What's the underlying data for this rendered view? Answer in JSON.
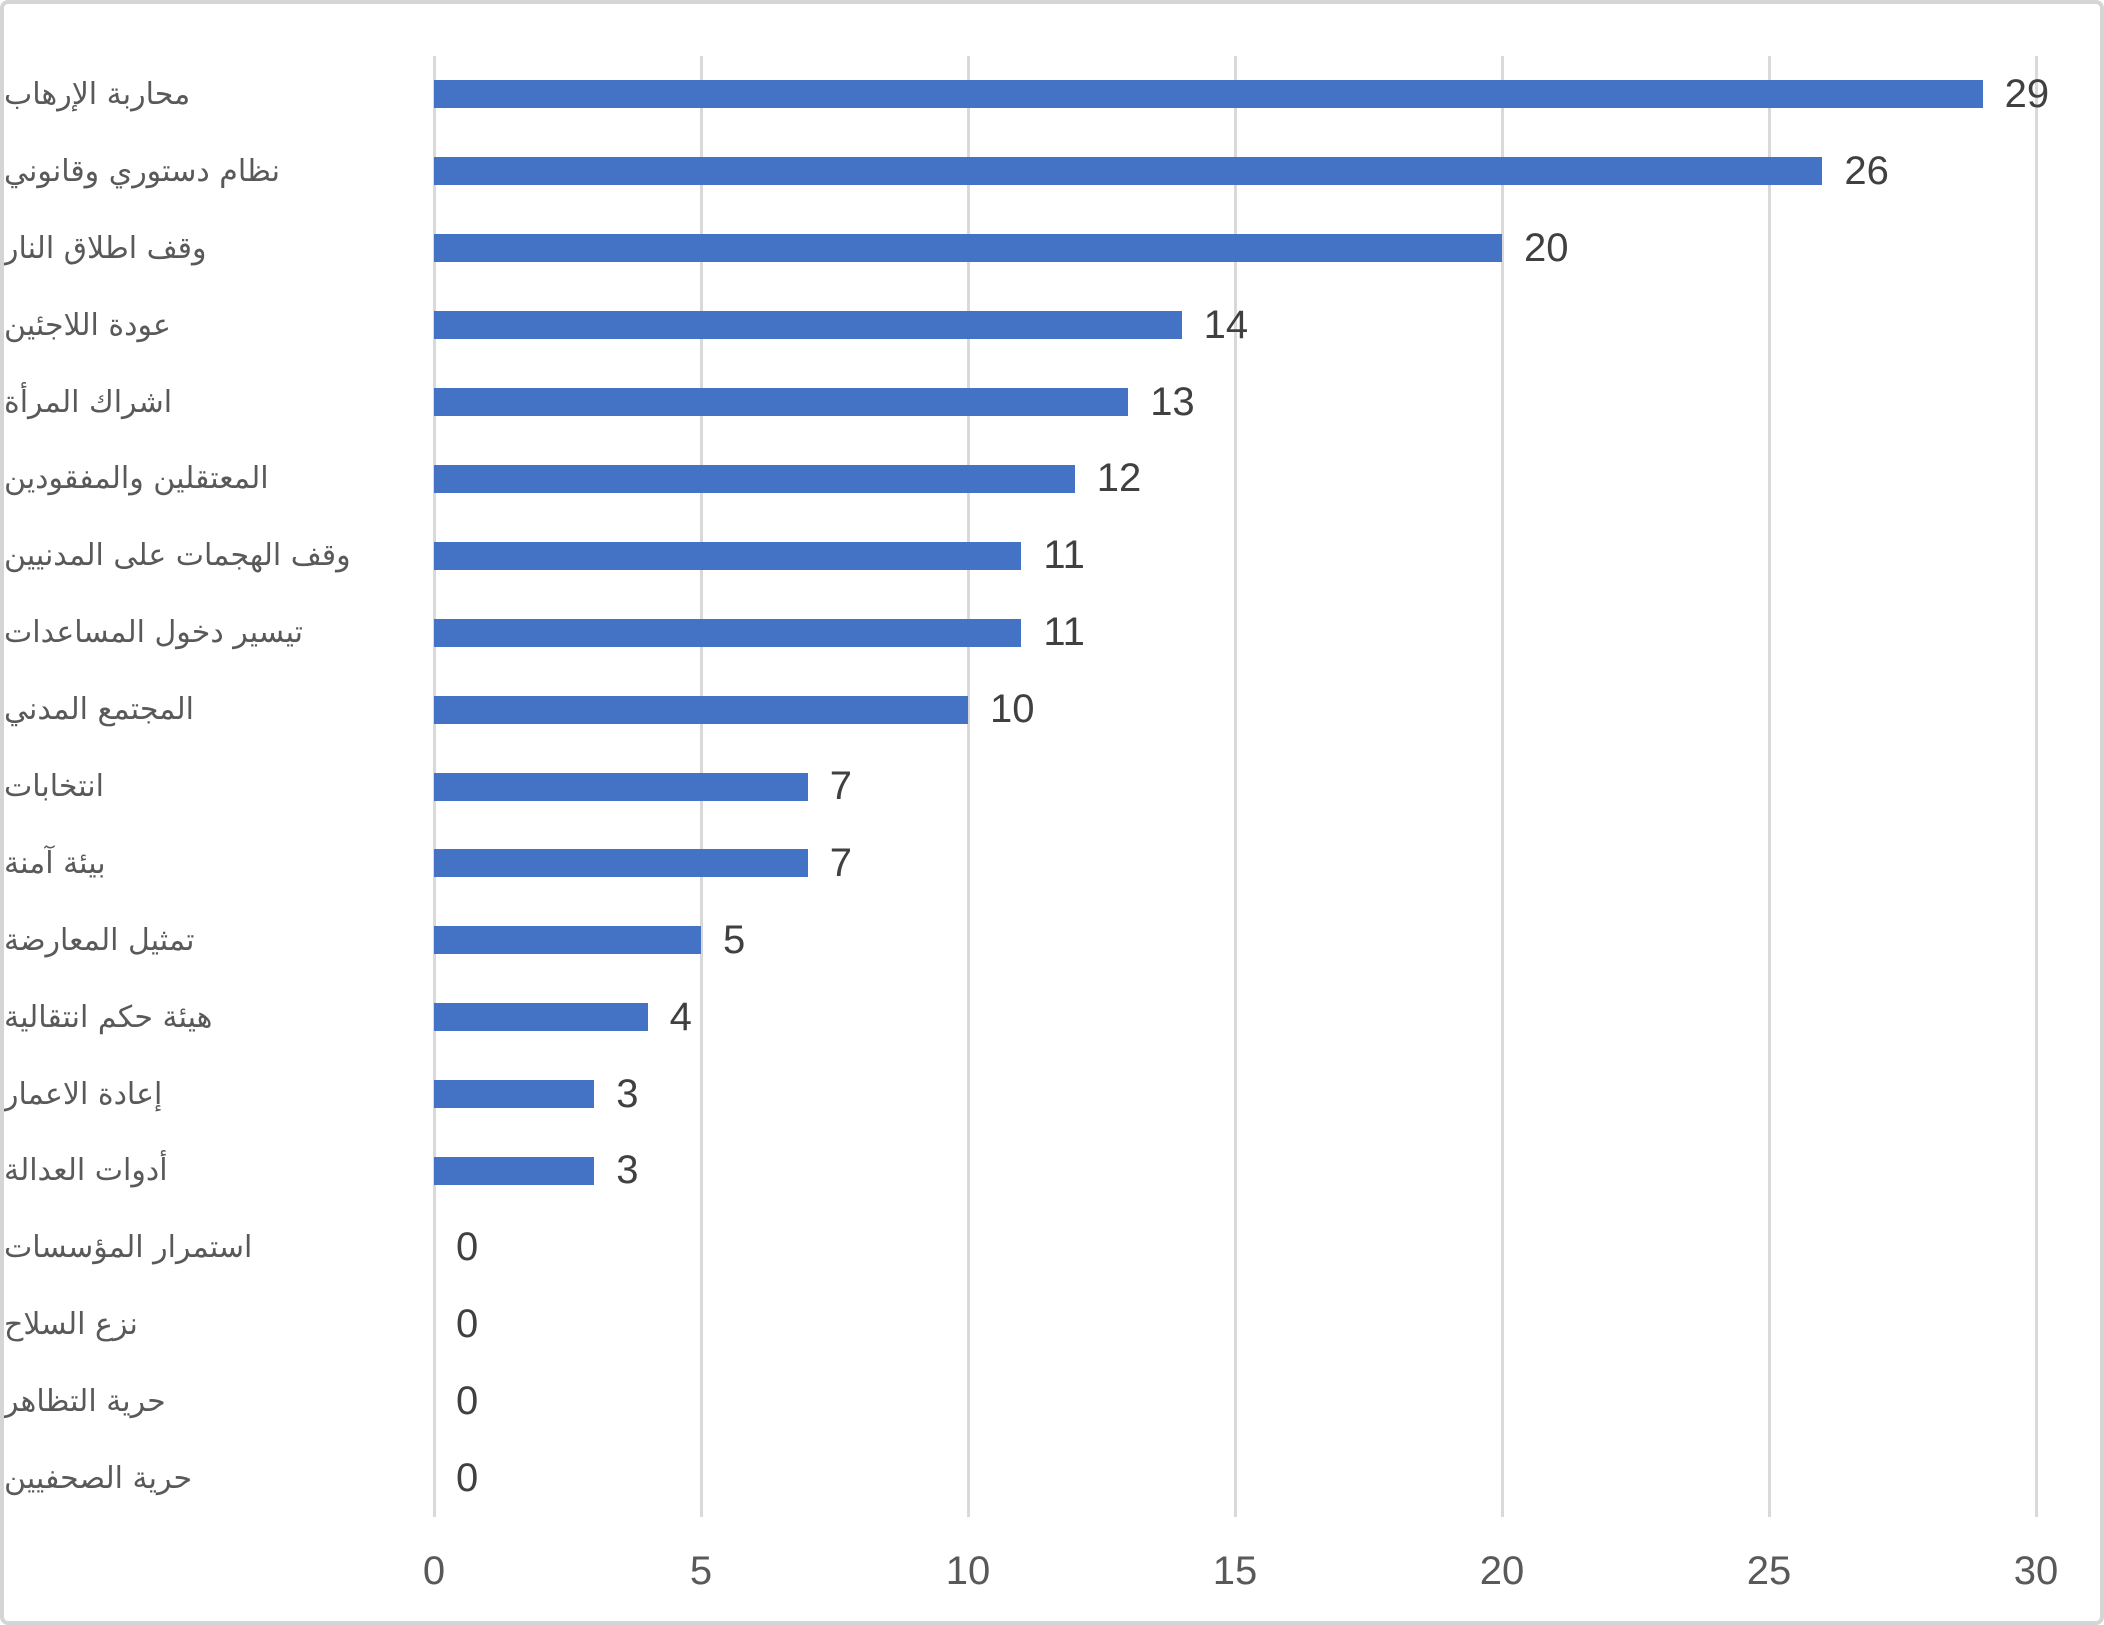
{
  "chart_data": {
    "type": "bar",
    "orientation": "horizontal",
    "title": "",
    "xlabel": "",
    "ylabel": "",
    "grid": true,
    "legend": false,
    "xlim": [
      0,
      30
    ],
    "x_ticks": [
      "0",
      "5",
      "10",
      "15",
      "20",
      "25",
      "30"
    ],
    "x_tick_values": [
      0,
      5,
      10,
      15,
      20,
      25,
      30
    ],
    "categories": [
      "محاربة الإرهاب",
      "نظام دستوري وقانوني",
      "وقف اطلاق النار",
      "عودة اللاجئين",
      "اشراك المرأة",
      "المعتقلين والمفقودين",
      "وقف الهجمات على المدنيين",
      "تيسير دخول المساعدات",
      "المجتمع المدني",
      "انتخابات",
      "بيئة آمنة",
      "تمثيل المعارضة",
      "هيئة حكم انتقالية",
      "إعادة الاعمار",
      "أدوات العدالة",
      "استمرار المؤسسات",
      "نزع السلاح",
      "حرية التظاهر",
      "حرية الصحفيين"
    ],
    "values": [
      29,
      26,
      20,
      14,
      13,
      12,
      11,
      11,
      10,
      7,
      7,
      5,
      4,
      3,
      3,
      0,
      0,
      0,
      0
    ],
    "value_labels": [
      "29",
      "26",
      "20",
      "14",
      "13",
      "12",
      "11",
      "11",
      "10",
      "7",
      "7",
      "5",
      "4",
      "3",
      "3",
      "0",
      "0",
      "0",
      "0"
    ],
    "colors": {
      "bar": "#4472C4",
      "gridline": "#D9D9D9",
      "value_label": "#404040",
      "axis_label": "#595959",
      "frame_border": "#D5D5D5",
      "background": "#FFFFFF"
    }
  }
}
